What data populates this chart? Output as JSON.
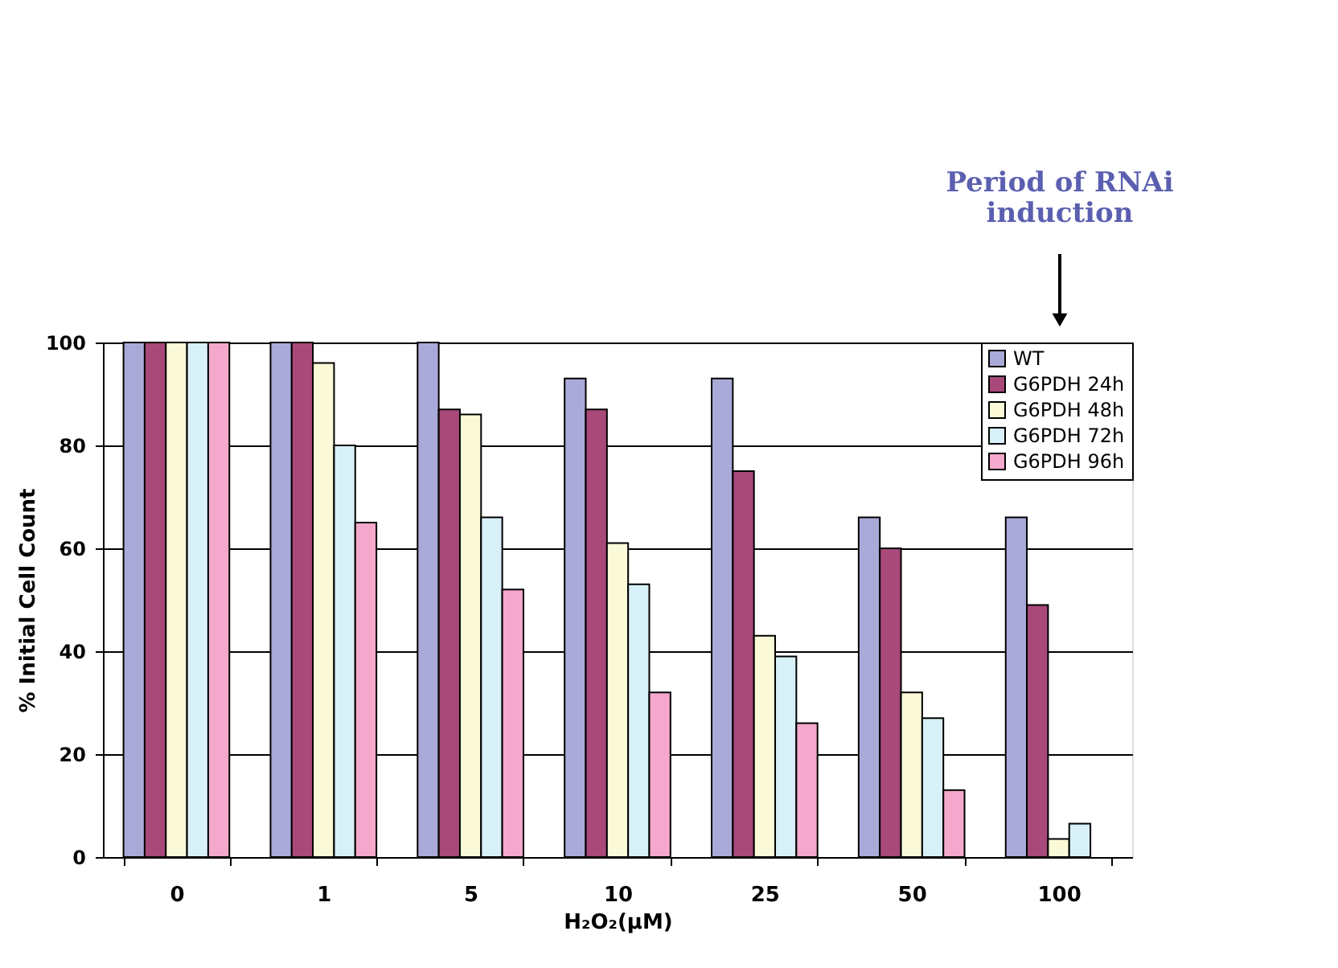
{
  "chart_data": {
    "type": "bar",
    "xlabel": "H₂O₂(μM)",
    "ylabel": "% Initial Cell Count",
    "categories": [
      "0",
      "1",
      "5",
      "10",
      "25",
      "50",
      "100"
    ],
    "series": [
      {
        "name": "WT",
        "color": "#aaaad8",
        "values": [
          100,
          100,
          100,
          93,
          93,
          66,
          66
        ]
      },
      {
        "name": "G6PDH 24h",
        "color": "#a8497a",
        "values": [
          100,
          100,
          87,
          87,
          75,
          60,
          49
        ]
      },
      {
        "name": "G6PDH 48h",
        "color": "#fafad8",
        "values": [
          100,
          96,
          86,
          61,
          43,
          32,
          3.5
        ]
      },
      {
        "name": "G6PDH 72h",
        "color": "#d8f0f8",
        "values": [
          100,
          80,
          66,
          53,
          39,
          27,
          6.5
        ]
      },
      {
        "name": "G6PDH 96h",
        "color": "#f4a8cc",
        "values": [
          100,
          65,
          52,
          32,
          26,
          13,
          null
        ]
      }
    ],
    "ylim": [
      0,
      100
    ],
    "yticks": [
      0,
      20,
      40,
      60,
      80,
      100
    ],
    "grid": "y",
    "legend": "top right",
    "annotations": [
      "Period of RNAi\ninduction"
    ]
  }
}
